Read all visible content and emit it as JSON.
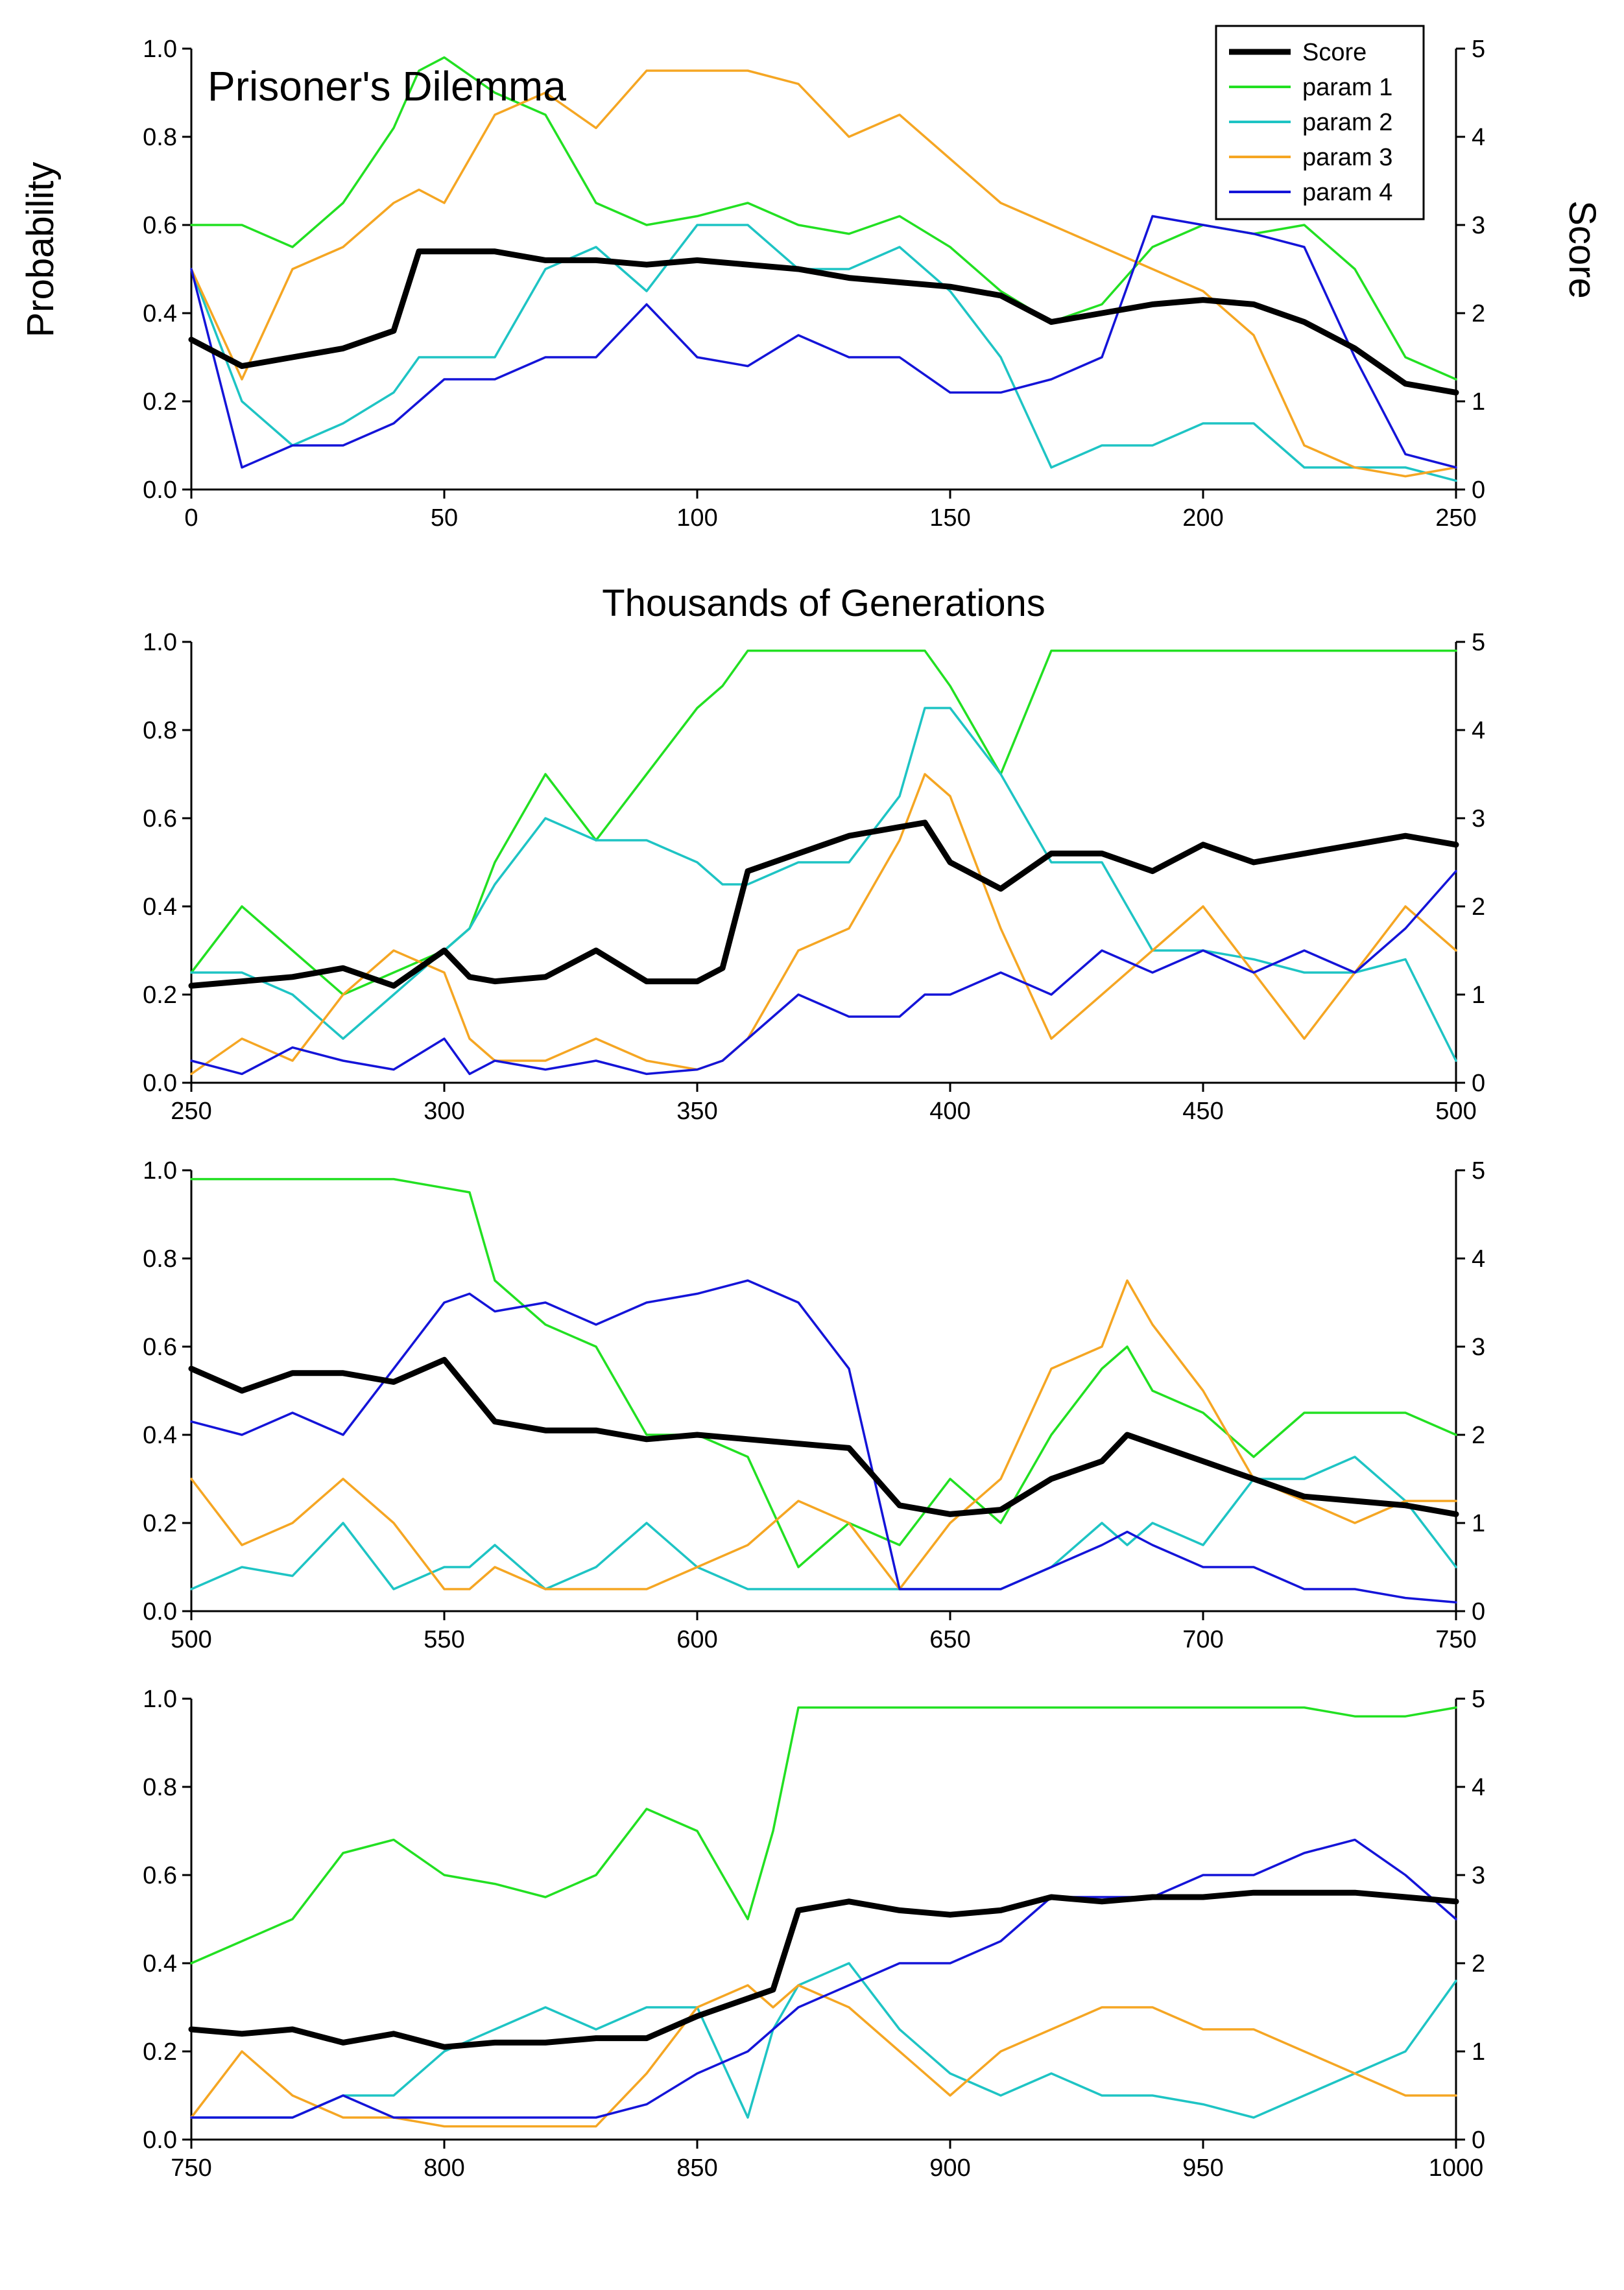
{
  "figure": {
    "annotation": "Prisoner's Dilemma",
    "ylabel_left": "Probability",
    "ylabel_right": "Score",
    "xlabel": "Thousands of Generations"
  },
  "legend": {
    "entries": [
      {
        "name": "Score",
        "color": "#000000"
      },
      {
        "name": "param 1",
        "color": "#22e022"
      },
      {
        "name": "param 2",
        "color": "#1ec4c4"
      },
      {
        "name": "param 3",
        "color": "#f5a623"
      },
      {
        "name": "param 4",
        "color": "#1414d8"
      }
    ]
  },
  "chart_data": [
    {
      "type": "line",
      "xlim": [
        0,
        250
      ],
      "ylim_left": [
        0,
        1
      ],
      "ylim_right": [
        0,
        5
      ],
      "xticks": [
        0,
        50,
        100,
        150,
        200,
        250
      ],
      "yticks_left": [
        "0.0",
        "0.2",
        "0.4",
        "0.6",
        "0.8",
        "1.0"
      ],
      "yticks_right": [
        "0",
        "1",
        "2",
        "3",
        "4",
        "5"
      ],
      "x": [
        0,
        10,
        20,
        30,
        40,
        45,
        50,
        60,
        70,
        80,
        90,
        100,
        110,
        120,
        130,
        140,
        150,
        160,
        170,
        180,
        190,
        200,
        210,
        220,
        230,
        240,
        250
      ],
      "series": [
        {
          "name": "Score",
          "color": "#000000",
          "axis": "right",
          "values": [
            1.7,
            1.4,
            1.5,
            1.6,
            1.8,
            2.7,
            2.7,
            2.7,
            2.6,
            2.6,
            2.55,
            2.6,
            2.55,
            2.5,
            2.4,
            2.35,
            2.3,
            2.2,
            1.9,
            2.0,
            2.1,
            2.15,
            2.1,
            1.9,
            1.6,
            1.2,
            1.1
          ]
        },
        {
          "name": "param 1",
          "color": "#22e022",
          "axis": "left",
          "values": [
            0.6,
            0.6,
            0.55,
            0.65,
            0.82,
            0.95,
            0.98,
            0.9,
            0.85,
            0.65,
            0.6,
            0.62,
            0.65,
            0.6,
            0.58,
            0.62,
            0.55,
            0.45,
            0.38,
            0.42,
            0.55,
            0.6,
            0.58,
            0.6,
            0.5,
            0.3,
            0.25
          ]
        },
        {
          "name": "param 2",
          "color": "#1ec4c4",
          "axis": "left",
          "values": [
            0.5,
            0.2,
            0.1,
            0.15,
            0.22,
            0.3,
            0.3,
            0.3,
            0.5,
            0.55,
            0.45,
            0.6,
            0.6,
            0.5,
            0.5,
            0.55,
            0.45,
            0.3,
            0.05,
            0.1,
            0.1,
            0.15,
            0.15,
            0.05,
            0.05,
            0.05,
            0.02
          ]
        },
        {
          "name": "param 3",
          "color": "#f5a623",
          "axis": "left",
          "values": [
            0.5,
            0.25,
            0.5,
            0.55,
            0.65,
            0.68,
            0.65,
            0.85,
            0.9,
            0.82,
            0.95,
            0.95,
            0.95,
            0.92,
            0.8,
            0.85,
            0.75,
            0.65,
            0.6,
            0.55,
            0.5,
            0.45,
            0.35,
            0.1,
            0.05,
            0.03,
            0.05
          ]
        },
        {
          "name": "param 4",
          "color": "#1414d8",
          "axis": "left",
          "values": [
            0.5,
            0.05,
            0.1,
            0.1,
            0.15,
            0.2,
            0.25,
            0.25,
            0.3,
            0.3,
            0.42,
            0.3,
            0.28,
            0.35,
            0.3,
            0.3,
            0.22,
            0.22,
            0.25,
            0.3,
            0.62,
            0.6,
            0.58,
            0.55,
            0.3,
            0.08,
            0.05
          ]
        }
      ]
    },
    {
      "type": "line",
      "xlim": [
        250,
        500
      ],
      "ylim_left": [
        0,
        1
      ],
      "ylim_right": [
        0,
        5
      ],
      "xticks": [
        250,
        300,
        350,
        400,
        450,
        500
      ],
      "yticks_left": [
        "0.0",
        "0.2",
        "0.4",
        "0.6",
        "0.8",
        "1.0"
      ],
      "yticks_right": [
        "0",
        "1",
        "2",
        "3",
        "4",
        "5"
      ],
      "x": [
        250,
        260,
        270,
        280,
        290,
        300,
        305,
        310,
        320,
        330,
        340,
        350,
        355,
        360,
        370,
        380,
        390,
        395,
        400,
        410,
        420,
        430,
        440,
        450,
        460,
        470,
        480,
        490,
        500
      ],
      "series": [
        {
          "name": "Score",
          "color": "#000000",
          "axis": "right",
          "values": [
            1.1,
            1.15,
            1.2,
            1.3,
            1.1,
            1.5,
            1.2,
            1.15,
            1.2,
            1.5,
            1.15,
            1.15,
            1.3,
            2.4,
            2.6,
            2.8,
            2.9,
            2.95,
            2.5,
            2.2,
            2.6,
            2.6,
            2.4,
            2.7,
            2.5,
            2.6,
            2.7,
            2.8,
            2.7
          ]
        },
        {
          "name": "param 1",
          "color": "#22e022",
          "axis": "left",
          "values": [
            0.25,
            0.4,
            0.3,
            0.2,
            0.25,
            0.3,
            0.35,
            0.5,
            0.7,
            0.55,
            0.7,
            0.85,
            0.9,
            0.98,
            0.98,
            0.98,
            0.98,
            0.98,
            0.9,
            0.7,
            0.98,
            0.98,
            0.98,
            0.98,
            0.98,
            0.98,
            0.98,
            0.98,
            0.98
          ]
        },
        {
          "name": "param 2",
          "color": "#1ec4c4",
          "axis": "left",
          "values": [
            0.25,
            0.25,
            0.2,
            0.1,
            0.2,
            0.3,
            0.35,
            0.45,
            0.6,
            0.55,
            0.55,
            0.5,
            0.45,
            0.45,
            0.5,
            0.5,
            0.65,
            0.85,
            0.85,
            0.7,
            0.5,
            0.5,
            0.3,
            0.3,
            0.28,
            0.25,
            0.25,
            0.28,
            0.05
          ]
        },
        {
          "name": "param 3",
          "color": "#f5a623",
          "axis": "left",
          "values": [
            0.02,
            0.1,
            0.05,
            0.2,
            0.3,
            0.25,
            0.1,
            0.05,
            0.05,
            0.1,
            0.05,
            0.03,
            0.05,
            0.1,
            0.3,
            0.35,
            0.55,
            0.7,
            0.65,
            0.35,
            0.1,
            0.2,
            0.3,
            0.4,
            0.25,
            0.1,
            0.25,
            0.4,
            0.3
          ]
        },
        {
          "name": "param 4",
          "color": "#1414d8",
          "axis": "left",
          "values": [
            0.05,
            0.02,
            0.08,
            0.05,
            0.03,
            0.1,
            0.02,
            0.05,
            0.03,
            0.05,
            0.02,
            0.03,
            0.05,
            0.1,
            0.2,
            0.15,
            0.15,
            0.2,
            0.2,
            0.25,
            0.2,
            0.3,
            0.25,
            0.3,
            0.25,
            0.3,
            0.25,
            0.35,
            0.48
          ]
        }
      ]
    },
    {
      "type": "line",
      "xlim": [
        500,
        750
      ],
      "ylim_left": [
        0,
        1
      ],
      "ylim_right": [
        0,
        5
      ],
      "xticks": [
        500,
        550,
        600,
        650,
        700,
        750
      ],
      "yticks_left": [
        "0.0",
        "0.2",
        "0.4",
        "0.6",
        "0.8",
        "1.0"
      ],
      "yticks_right": [
        "0",
        "1",
        "2",
        "3",
        "4",
        "5"
      ],
      "x": [
        500,
        510,
        520,
        530,
        540,
        550,
        555,
        560,
        570,
        580,
        590,
        600,
        610,
        620,
        630,
        640,
        650,
        660,
        670,
        680,
        685,
        690,
        700,
        710,
        720,
        730,
        740,
        750
      ],
      "series": [
        {
          "name": "Score",
          "color": "#000000",
          "axis": "right",
          "values": [
            2.75,
            2.5,
            2.7,
            2.7,
            2.6,
            2.85,
            2.5,
            2.15,
            2.05,
            2.05,
            1.95,
            2.0,
            1.95,
            1.9,
            1.85,
            1.2,
            1.1,
            1.15,
            1.5,
            1.7,
            2.0,
            1.9,
            1.7,
            1.5,
            1.3,
            1.25,
            1.2,
            1.1
          ]
        },
        {
          "name": "param 1",
          "color": "#22e022",
          "axis": "left",
          "values": [
            0.98,
            0.98,
            0.98,
            0.98,
            0.98,
            0.96,
            0.95,
            0.75,
            0.65,
            0.6,
            0.4,
            0.4,
            0.35,
            0.1,
            0.2,
            0.15,
            0.3,
            0.2,
            0.4,
            0.55,
            0.6,
            0.5,
            0.45,
            0.35,
            0.45,
            0.45,
            0.45,
            0.4
          ]
        },
        {
          "name": "param 2",
          "color": "#1ec4c4",
          "axis": "left",
          "values": [
            0.05,
            0.1,
            0.08,
            0.2,
            0.05,
            0.1,
            0.1,
            0.15,
            0.05,
            0.1,
            0.2,
            0.1,
            0.05,
            0.05,
            0.05,
            0.05,
            0.05,
            0.05,
            0.1,
            0.2,
            0.15,
            0.2,
            0.15,
            0.3,
            0.3,
            0.35,
            0.25,
            0.1
          ]
        },
        {
          "name": "param 3",
          "color": "#f5a623",
          "axis": "left",
          "values": [
            0.3,
            0.15,
            0.2,
            0.3,
            0.2,
            0.05,
            0.05,
            0.1,
            0.05,
            0.05,
            0.05,
            0.1,
            0.15,
            0.25,
            0.2,
            0.05,
            0.2,
            0.3,
            0.55,
            0.6,
            0.75,
            0.65,
            0.5,
            0.3,
            0.25,
            0.2,
            0.25,
            0.25
          ]
        },
        {
          "name": "param 4",
          "color": "#1414d8",
          "axis": "left",
          "values": [
            0.43,
            0.4,
            0.45,
            0.4,
            0.55,
            0.7,
            0.72,
            0.68,
            0.7,
            0.65,
            0.7,
            0.72,
            0.75,
            0.7,
            0.55,
            0.05,
            0.05,
            0.05,
            0.1,
            0.15,
            0.18,
            0.15,
            0.1,
            0.1,
            0.05,
            0.05,
            0.03,
            0.02
          ]
        }
      ]
    },
    {
      "type": "line",
      "xlim": [
        750,
        1000
      ],
      "ylim_left": [
        0,
        1
      ],
      "ylim_right": [
        0,
        5
      ],
      "xticks": [
        750,
        800,
        850,
        900,
        950,
        1000
      ],
      "yticks_left": [
        "0.0",
        "0.2",
        "0.4",
        "0.6",
        "0.8",
        "1.0"
      ],
      "yticks_right": [
        "0",
        "1",
        "2",
        "3",
        "4",
        "5"
      ],
      "x": [
        750,
        760,
        770,
        780,
        790,
        800,
        810,
        820,
        830,
        840,
        850,
        860,
        865,
        870,
        880,
        890,
        900,
        910,
        920,
        930,
        940,
        950,
        960,
        970,
        980,
        990,
        1000
      ],
      "series": [
        {
          "name": "Score",
          "color": "#000000",
          "axis": "right",
          "values": [
            1.25,
            1.2,
            1.25,
            1.1,
            1.2,
            1.05,
            1.1,
            1.1,
            1.15,
            1.15,
            1.4,
            1.6,
            1.7,
            2.6,
            2.7,
            2.6,
            2.55,
            2.6,
            2.75,
            2.7,
            2.75,
            2.75,
            2.8,
            2.8,
            2.8,
            2.75,
            2.7
          ]
        },
        {
          "name": "param 1",
          "color": "#22e022",
          "axis": "left",
          "values": [
            0.4,
            0.45,
            0.5,
            0.65,
            0.68,
            0.6,
            0.58,
            0.55,
            0.6,
            0.75,
            0.7,
            0.5,
            0.7,
            0.98,
            0.98,
            0.98,
            0.98,
            0.98,
            0.98,
            0.98,
            0.98,
            0.98,
            0.98,
            0.98,
            0.96,
            0.96,
            0.98
          ]
        },
        {
          "name": "param 2",
          "color": "#1ec4c4",
          "axis": "left",
          "values": [
            0.05,
            0.05,
            0.05,
            0.1,
            0.1,
            0.2,
            0.25,
            0.3,
            0.25,
            0.3,
            0.3,
            0.05,
            0.25,
            0.35,
            0.4,
            0.25,
            0.15,
            0.1,
            0.15,
            0.1,
            0.1,
            0.08,
            0.05,
            0.1,
            0.15,
            0.2,
            0.36
          ]
        },
        {
          "name": "param 3",
          "color": "#f5a623",
          "axis": "left",
          "values": [
            0.05,
            0.2,
            0.1,
            0.05,
            0.05,
            0.03,
            0.03,
            0.03,
            0.03,
            0.15,
            0.3,
            0.35,
            0.3,
            0.35,
            0.3,
            0.2,
            0.1,
            0.2,
            0.25,
            0.3,
            0.3,
            0.25,
            0.25,
            0.2,
            0.15,
            0.1,
            0.1
          ]
        },
        {
          "name": "param 4",
          "color": "#1414d8",
          "axis": "left",
          "values": [
            0.05,
            0.05,
            0.05,
            0.1,
            0.05,
            0.05,
            0.05,
            0.05,
            0.05,
            0.08,
            0.15,
            0.2,
            0.25,
            0.3,
            0.35,
            0.4,
            0.4,
            0.45,
            0.55,
            0.55,
            0.55,
            0.6,
            0.6,
            0.65,
            0.68,
            0.6,
            0.5
          ]
        }
      ]
    }
  ]
}
